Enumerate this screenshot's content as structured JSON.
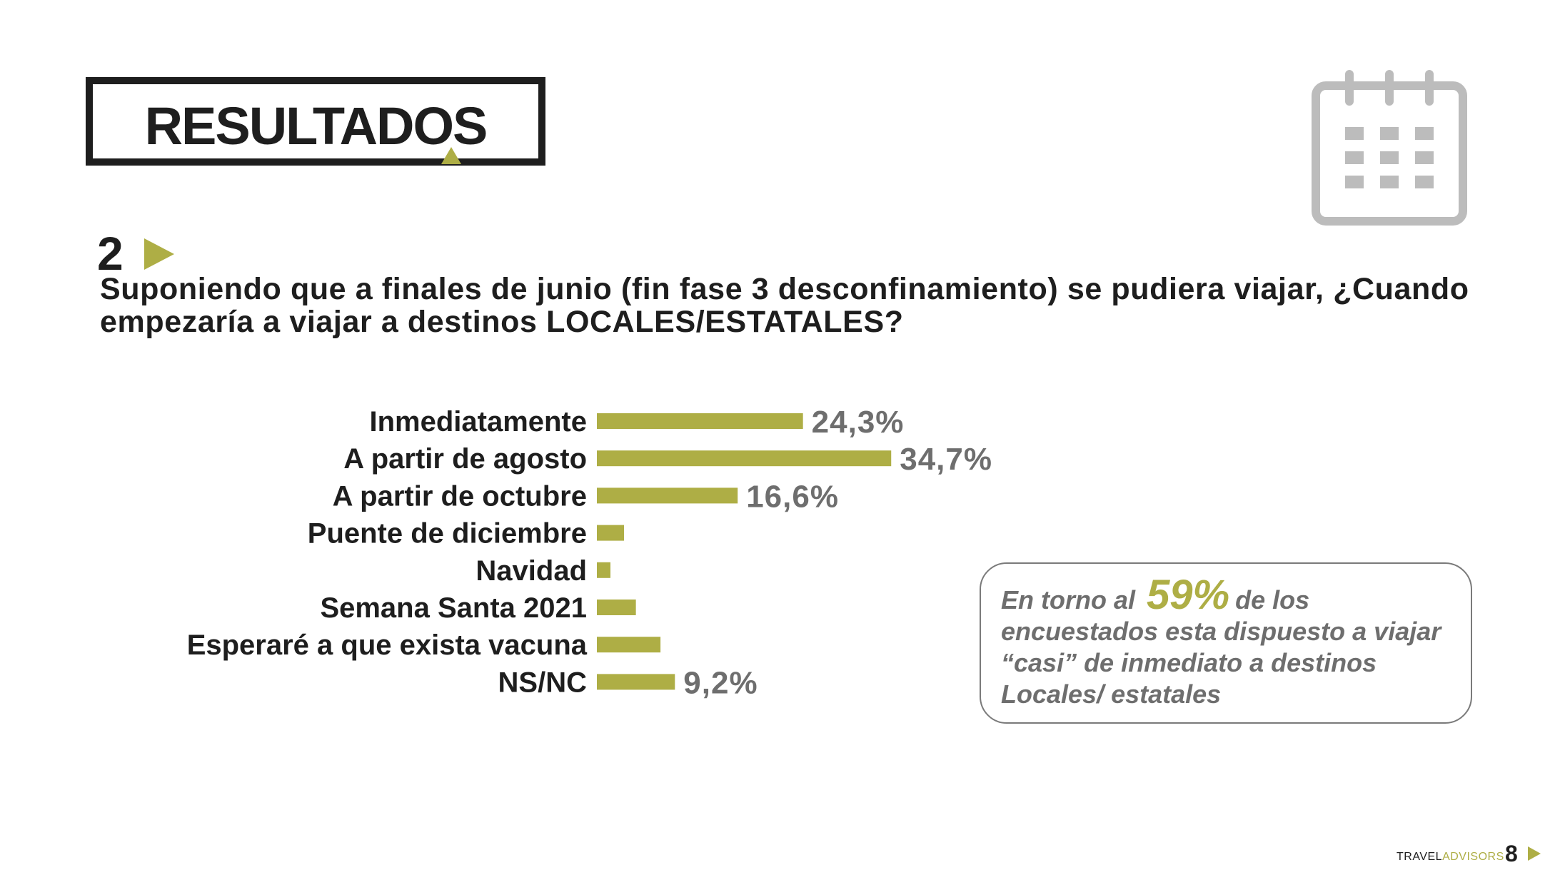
{
  "header": {
    "title": "RESULTADOS"
  },
  "icons": {
    "calendar": "calendar-icon"
  },
  "colors": {
    "accent": "#aeae45",
    "text": "#1e1e1e",
    "muted": "#6e6e6e"
  },
  "question": {
    "number": "2",
    "text": "Suponiendo que a finales de junio (fin fase 3 desconfinamiento)  se pudiera viajar, ¿Cuando empezaría a viajar a destinos LOCALES/ESTATALES?"
  },
  "chart_data": {
    "type": "bar",
    "orientation": "horizontal",
    "categories": [
      "Inmediatamente",
      "A partir de agosto",
      "A partir de octubre",
      "Puente de diciembre",
      "Navidad",
      "Semana Santa 2021",
      "Esperaré a que exista vacuna",
      "NS/NC"
    ],
    "values": [
      24.3,
      34.7,
      16.6,
      3.2,
      1.6,
      4.6,
      7.5,
      9.2
    ],
    "data_labels": [
      "24,3%",
      "34,7%",
      "16,6%",
      "",
      "",
      "",
      "",
      "9,2%"
    ],
    "xlim": [
      0,
      40
    ],
    "grid": false,
    "color": "#aeae45"
  },
  "callout": {
    "prefix": "En torno al",
    "highlight": "59%",
    "suffix": "de los encuestados esta dispuesto a viajar “casi” de inmediato a destinos Locales/ estatales"
  },
  "footer": {
    "brand_part1": "TRAVEL",
    "brand_part2": "ADVISORS",
    "page": "8"
  }
}
